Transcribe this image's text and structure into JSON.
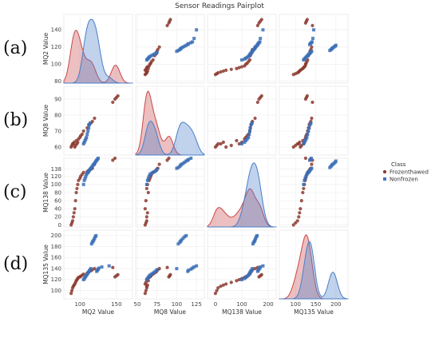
{
  "chart_data": {
    "type": "scatter",
    "title": "Sensor Readings Pairplot",
    "variables": [
      "MQ2 Value",
      "MQ8 Value",
      "MQ138 Value",
      "MQ135 Value"
    ],
    "ticks": [
      [
        100,
        150
      ],
      [
        50,
        75,
        100,
        125
      ],
      [
        0,
        100,
        200
      ],
      [
        100,
        150,
        200
      ]
    ],
    "yticks": [
      [
        80,
        100,
        120,
        140
      ],
      [
        60,
        70,
        80,
        90
      ],
      [
        0,
        20,
        40,
        60,
        80,
        100,
        120,
        138
      ],
      [
        100,
        120,
        140,
        160,
        180,
        200
      ]
    ],
    "ranges": [
      [
        78,
        172
      ],
      [
        48,
        135
      ],
      [
        -30,
        230
      ],
      [
        60,
        230
      ]
    ],
    "yranges": [
      [
        78,
        158
      ],
      [
        55,
        98
      ],
      [
        -5,
        165
      ],
      [
        85,
        210
      ]
    ],
    "panel_labels": [
      "(a)",
      "(b)",
      "(c)",
      "(d)"
    ],
    "legend": {
      "title": "Class",
      "placement": "right",
      "entries": [
        {
          "name": "Frozenthawed",
          "color": "#8b3a2f"
        },
        {
          "name": "Nonfrozen",
          "color": "#4472c4"
        }
      ]
    },
    "classes": {
      "Frozenthawed": {
        "MQ2": [
          88,
          89,
          90,
          91,
          92,
          93,
          94,
          95,
          96,
          97,
          98,
          100,
          101,
          103,
          105,
          110,
          112,
          115,
          117,
          120,
          145,
          148,
          150,
          152
        ],
        "MQ8": [
          60,
          61,
          62,
          62,
          63,
          60,
          61,
          64,
          62,
          63,
          65,
          66,
          67,
          68,
          70,
          72,
          74,
          75,
          76,
          78,
          88,
          90,
          91,
          92
        ],
        "MQ138": [
          0,
          5,
          10,
          20,
          30,
          40,
          60,
          80,
          90,
          100,
          110,
          115,
          120,
          125,
          130,
          132,
          135,
          138,
          140,
          150,
          160,
          165,
          170,
          175
        ],
        "MQ135": [
          95,
          100,
          105,
          108,
          110,
          112,
          115,
          118,
          120,
          122,
          124,
          125,
          126,
          128,
          130,
          132,
          134,
          136,
          138,
          140,
          142,
          125,
          127,
          129
        ]
      },
      "Nonfrozen": {
        "MQ2": [
          105,
          106,
          107,
          108,
          109,
          110,
          111,
          112,
          113,
          114,
          115,
          116,
          117,
          118,
          119,
          120,
          121,
          122,
          123,
          124,
          125,
          126,
          130,
          140
        ],
        "MQ8": [
          62,
          63,
          64,
          65,
          66,
          68,
          70,
          72,
          74,
          75,
          100,
          102,
          104,
          105,
          106,
          108,
          110,
          112,
          114,
          115,
          118,
          120,
          122,
          125
        ],
        "MQ138": [
          100,
          110,
          115,
          120,
          125,
          128,
          130,
          132,
          135,
          138,
          140,
          142,
          145,
          148,
          150,
          152,
          155,
          158,
          160,
          162,
          165,
          168,
          170,
          180
        ],
        "MQ135": [
          120,
          122,
          124,
          126,
          128,
          130,
          132,
          134,
          136,
          138,
          140,
          185,
          188,
          190,
          192,
          195,
          198,
          200,
          135,
          137,
          139,
          141,
          143,
          145
        ]
      }
    }
  }
}
